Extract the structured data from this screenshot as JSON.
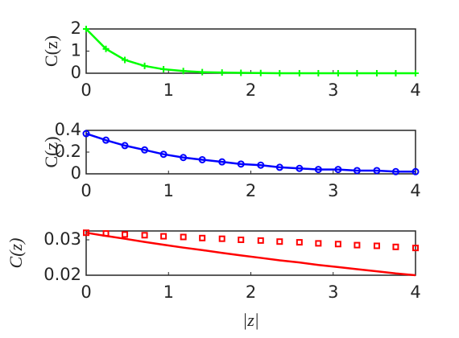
{
  "chart_data": [
    {
      "type": "line",
      "ylabel": "C(z)",
      "label_style": "normal",
      "x": [
        0,
        0.24,
        0.47,
        0.71,
        0.94,
        1.18,
        1.41,
        1.65,
        1.88,
        2.12,
        2.35,
        2.59,
        2.82,
        3.06,
        3.29,
        3.53,
        3.76,
        4
      ],
      "xlim": [
        0,
        4
      ],
      "xticks": [
        0,
        1,
        2,
        3,
        4
      ],
      "ylim": [
        0,
        2
      ],
      "yticks": [
        0,
        1,
        2
      ],
      "series": [
        {
          "color": "#00ff00",
          "marker": "plus",
          "values": [
            2,
            1.1,
            0.6,
            0.33,
            0.18,
            0.1,
            0.05,
            0.03,
            0.02,
            0.01,
            0,
            0,
            0,
            0,
            0,
            0,
            0,
            0
          ]
        },
        {
          "color": "#00ff00",
          "line": true,
          "values": [
            2,
            1.1,
            0.6,
            0.33,
            0.18,
            0.1,
            0.05,
            0.03,
            0.02,
            0.01,
            0,
            0,
            0,
            0,
            0,
            0,
            0,
            0
          ]
        }
      ]
    },
    {
      "type": "line",
      "ylabel": "C(z)",
      "label_style": "normal",
      "x": [
        0,
        0.24,
        0.47,
        0.71,
        0.94,
        1.18,
        1.41,
        1.65,
        1.88,
        2.12,
        2.35,
        2.59,
        2.82,
        3.06,
        3.29,
        3.53,
        3.76,
        4
      ],
      "xlim": [
        0,
        4
      ],
      "xticks": [
        0,
        1,
        2,
        3,
        4
      ],
      "ylim": [
        0,
        0.4
      ],
      "yticks": [
        0,
        0.2,
        0.4
      ],
      "series": [
        {
          "color": "#0000ff",
          "marker": "circle",
          "values": [
            0.37,
            0.31,
            0.26,
            0.22,
            0.18,
            0.15,
            0.13,
            0.11,
            0.09,
            0.08,
            0.06,
            0.05,
            0.04,
            0.04,
            0.03,
            0.03,
            0.02,
            0.02
          ]
        },
        {
          "color": "#0000ff",
          "line": true,
          "values": [
            0.37,
            0.31,
            0.26,
            0.22,
            0.18,
            0.15,
            0.13,
            0.11,
            0.09,
            0.08,
            0.06,
            0.05,
            0.04,
            0.04,
            0.03,
            0.03,
            0.02,
            0.02
          ]
        }
      ]
    },
    {
      "type": "line",
      "ylabel": "C(z)",
      "label_style": "italic",
      "xlabel": "|z|",
      "x": [
        0,
        0.24,
        0.47,
        0.71,
        0.94,
        1.18,
        1.41,
        1.65,
        1.88,
        2.12,
        2.35,
        2.59,
        2.82,
        3.06,
        3.29,
        3.53,
        3.76,
        4
      ],
      "xlim": [
        0,
        4
      ],
      "xticks": [
        0,
        1,
        2,
        3,
        4
      ],
      "ylim": [
        0.02,
        0.0325
      ],
      "yticks": [
        0.02,
        0.03
      ],
      "series": [
        {
          "color": "#ff0000",
          "marker": "square",
          "values": [
            0.032,
            0.0318,
            0.0315,
            0.0313,
            0.031,
            0.0308,
            0.0305,
            0.0303,
            0.03,
            0.0298,
            0.0295,
            0.0293,
            0.029,
            0.0288,
            0.0285,
            0.0283,
            0.028,
            0.0277
          ]
        },
        {
          "color": "#ff0000",
          "line": true,
          "values": [
            0.032,
            0.0311,
            0.0303,
            0.0294,
            0.0286,
            0.0278,
            0.0271,
            0.0263,
            0.0256,
            0.0249,
            0.0242,
            0.0236,
            0.0229,
            0.0223,
            0.0217,
            0.0211,
            0.0205,
            0.02
          ]
        }
      ]
    }
  ]
}
